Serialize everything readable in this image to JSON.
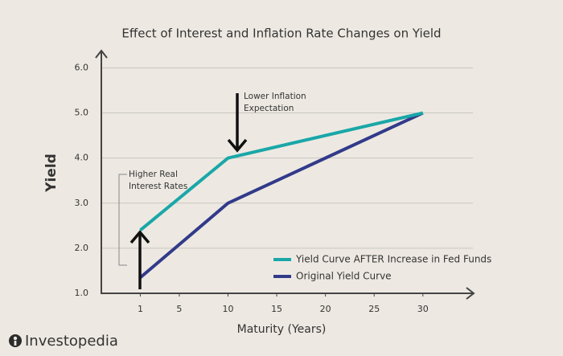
{
  "chart_data": {
    "type": "line",
    "title": "Effect of Interest and Inflation Rate Changes on Yield",
    "x_label": "Maturity (Years)",
    "y_label": "Yield",
    "x": [
      1,
      10,
      30
    ],
    "series": [
      {
        "name": "Yield Curve AFTER Increase in Fed Funds",
        "color": "#1aa7a8",
        "values": [
          2.4,
          4.0,
          5.0
        ]
      },
      {
        "name": "Original Yield Curve",
        "color": "#323a8a",
        "values": [
          1.35,
          3.0,
          5.0
        ]
      }
    ],
    "xlim": [
      -3,
      35.3
    ],
    "ylim": [
      1,
      6.4
    ],
    "xticks": [
      1,
      5,
      10,
      15,
      20,
      25,
      30
    ],
    "yticks": [
      {
        "value": 1,
        "label": "1.0"
      },
      {
        "value": 2,
        "label": "2.0"
      },
      {
        "value": 3,
        "label": "3.0"
      },
      {
        "value": 4,
        "label": "4.0"
      },
      {
        "value": 5,
        "label": "5.0"
      },
      {
        "value": 6,
        "label": "6.0"
      }
    ],
    "grid": true,
    "legend": "lower right",
    "annotations": [
      {
        "lines": [
          "Higher Real",
          "Interest Rates"
        ]
      },
      {
        "lines": [
          "Lower Inflation",
          "Expectation"
        ]
      }
    ]
  },
  "brand": "Investopedia"
}
